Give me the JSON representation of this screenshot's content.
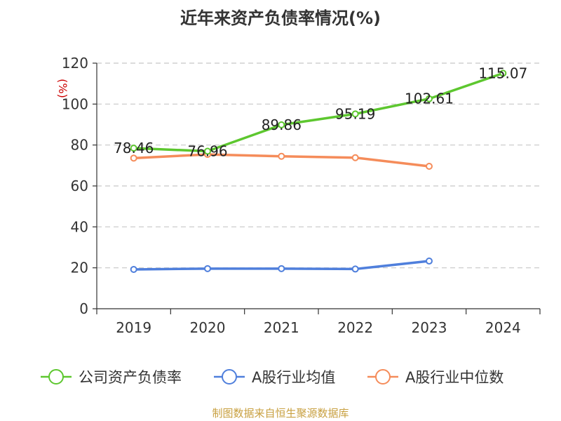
{
  "chart_data": {
    "type": "line",
    "title": "近年来资产负债率情况(%)",
    "ylabel": "(%)",
    "categories": [
      "2019",
      "2020",
      "2021",
      "2022",
      "2023",
      "2024"
    ],
    "ylim": [
      0,
      120
    ],
    "yticks": [
      0,
      20,
      40,
      60,
      80,
      100,
      120
    ],
    "grid": true,
    "legend_position": "bottom",
    "series": [
      {
        "name": "公司资产负债率",
        "color": "#5dc72f",
        "values": [
          78.46,
          76.96,
          89.86,
          95.19,
          102.61,
          115.07
        ],
        "labels": [
          "78.46",
          "76.96",
          "89.86",
          "95.19",
          "102.61",
          "115.07"
        ]
      },
      {
        "name": "A股行业均值",
        "color": "#4f7fdc",
        "values": [
          19.2,
          19.6,
          19.6,
          19.4,
          23.3,
          null
        ]
      },
      {
        "name": "A股行业中位数",
        "color": "#f58c5a",
        "values": [
          73.6,
          75.4,
          74.5,
          73.8,
          69.6,
          null
        ]
      }
    ]
  },
  "source": "制图数据来自恒生聚源数据库"
}
